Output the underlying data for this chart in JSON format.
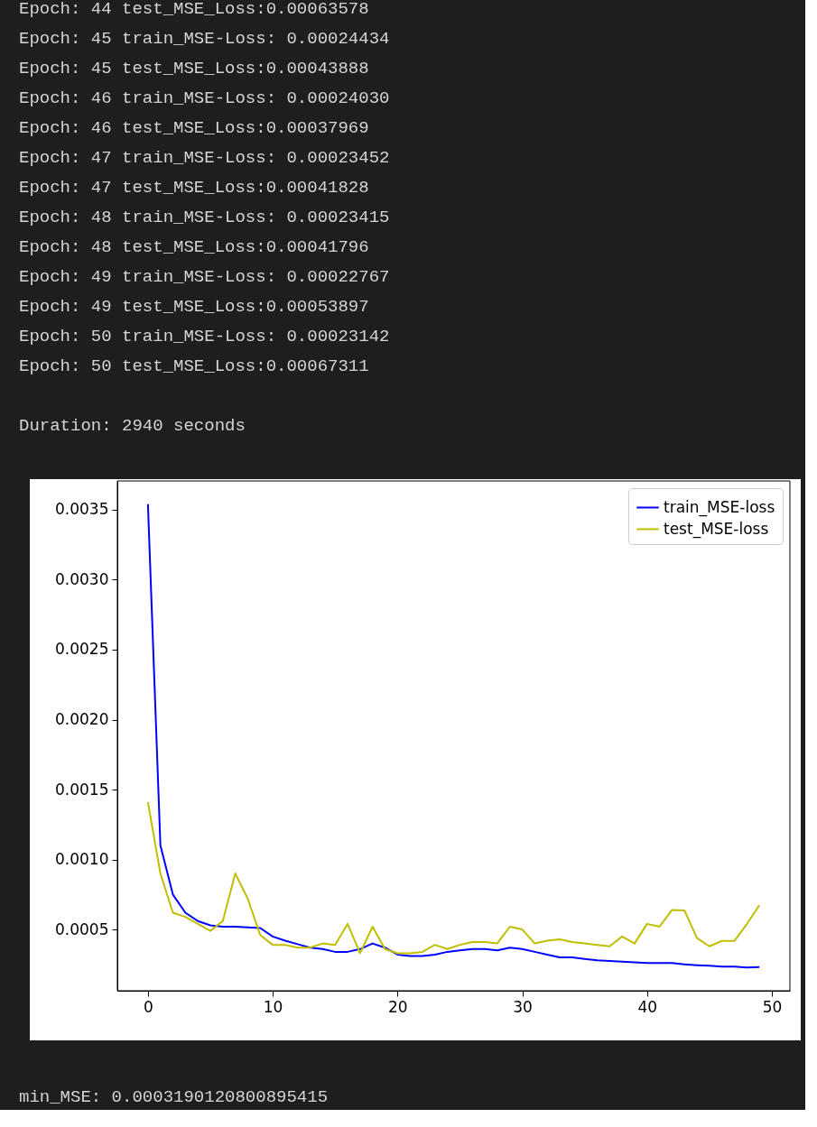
{
  "chart_data": {
    "type": "line",
    "annotations": [
      "Epoch: 44 test_MSE_Loss:0.00063578",
      "Epoch: 45 train_MSE-Loss: 0.00024434",
      "Epoch: 45 test_MSE_Loss:0.00043888",
      "Epoch: 46 train_MSE-Loss: 0.00024030",
      "Epoch: 46 test_MSE_Loss:0.00037969",
      "Epoch: 47 train_MSE-Loss: 0.00023452",
      "Epoch: 47 test_MSE_Loss:0.00041828",
      "Epoch: 48 train_MSE-Loss: 0.00023415",
      "Epoch: 48 test_MSE_Loss:0.00041796",
      "Epoch: 49 train_MSE-Loss: 0.00022767",
      "Epoch: 49 test_MSE_Loss:0.00053897",
      "Epoch: 50 train_MSE-Loss: 0.00023142",
      "Epoch: 50 test_MSE_Loss:0.00067311",
      "Duration: 2940 seconds",
      "min_MSE: 0.0003190120800895415"
    ],
    "x": [
      0,
      1,
      2,
      3,
      4,
      5,
      6,
      7,
      8,
      9,
      10,
      11,
      12,
      13,
      14,
      15,
      16,
      17,
      18,
      19,
      20,
      21,
      22,
      23,
      24,
      25,
      26,
      27,
      28,
      29,
      30,
      31,
      32,
      33,
      34,
      35,
      36,
      37,
      38,
      39,
      40,
      41,
      42,
      43,
      44,
      45,
      46,
      47,
      48,
      49
    ],
    "series": [
      {
        "name": "train_MSE-loss",
        "color": "#0000ff",
        "values": [
          0.00354,
          0.0011,
          0.00075,
          0.00062,
          0.00056,
          0.00053,
          0.00052,
          0.00052,
          0.000515,
          0.00051,
          0.00045,
          0.00042,
          0.000395,
          0.00037,
          0.00036,
          0.00034,
          0.00034,
          0.00036,
          0.0004,
          0.00037,
          0.00032,
          0.00031,
          0.00031,
          0.00032,
          0.00034,
          0.00035,
          0.00036,
          0.00036,
          0.00035,
          0.00037,
          0.00036,
          0.00034,
          0.00032,
          0.0003,
          0.0003,
          0.00029,
          0.00028,
          0.000275,
          0.00027,
          0.000265,
          0.00026,
          0.00026,
          0.00026,
          0.00025,
          0.00024434,
          0.0002403,
          0.00023452,
          0.00023415,
          0.00022767,
          0.00023142
        ]
      },
      {
        "name": "test_MSE-loss",
        "color": "#bfbf00",
        "values": [
          0.00141,
          0.0009,
          0.00062,
          0.00059,
          0.00054,
          0.00049,
          0.00056,
          0.0009,
          0.00072,
          0.00046,
          0.00039,
          0.00039,
          0.00037,
          0.00037,
          0.0004,
          0.00039,
          0.00054,
          0.00033,
          0.00052,
          0.00036,
          0.00033,
          0.00033,
          0.00034,
          0.00039,
          0.00036,
          0.00039,
          0.00041,
          0.00041,
          0.0004,
          0.00052,
          0.0005,
          0.0004,
          0.00042,
          0.00043,
          0.00041,
          0.0004,
          0.00039,
          0.00038,
          0.00045,
          0.0004,
          0.00054,
          0.00052,
          0.00064,
          0.00063578,
          0.00043888,
          0.00037969,
          0.00041828,
          0.00041796,
          0.00053897,
          0.00067311
        ]
      }
    ],
    "xlim": [
      -2.45,
      51.45
    ],
    "xticks": [
      0,
      10,
      20,
      30,
      40,
      50
    ],
    "ylim": [
      6.2e-05,
      0.003706
    ],
    "yticks": [
      {
        "value": 0.0005,
        "label": "0.0005"
      },
      {
        "value": 0.001,
        "label": "0.0010"
      },
      {
        "value": 0.0015,
        "label": "0.0015"
      },
      {
        "value": 0.002,
        "label": "0.0020"
      },
      {
        "value": 0.0025,
        "label": "0.0025"
      },
      {
        "value": 0.003,
        "label": "0.0030"
      },
      {
        "value": 0.0035,
        "label": "0.0035"
      }
    ],
    "legend": "top right",
    "grid": false,
    "marker": "none",
    "line_style": "solid"
  }
}
